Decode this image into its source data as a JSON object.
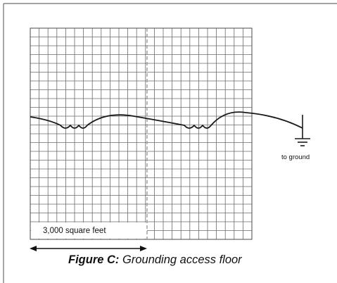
{
  "figure": {
    "label": "Figure C:",
    "title": " Grounding access floor"
  },
  "floor": {
    "area_label": "3,000 square feet"
  },
  "ground": {
    "label": "to ground"
  }
}
